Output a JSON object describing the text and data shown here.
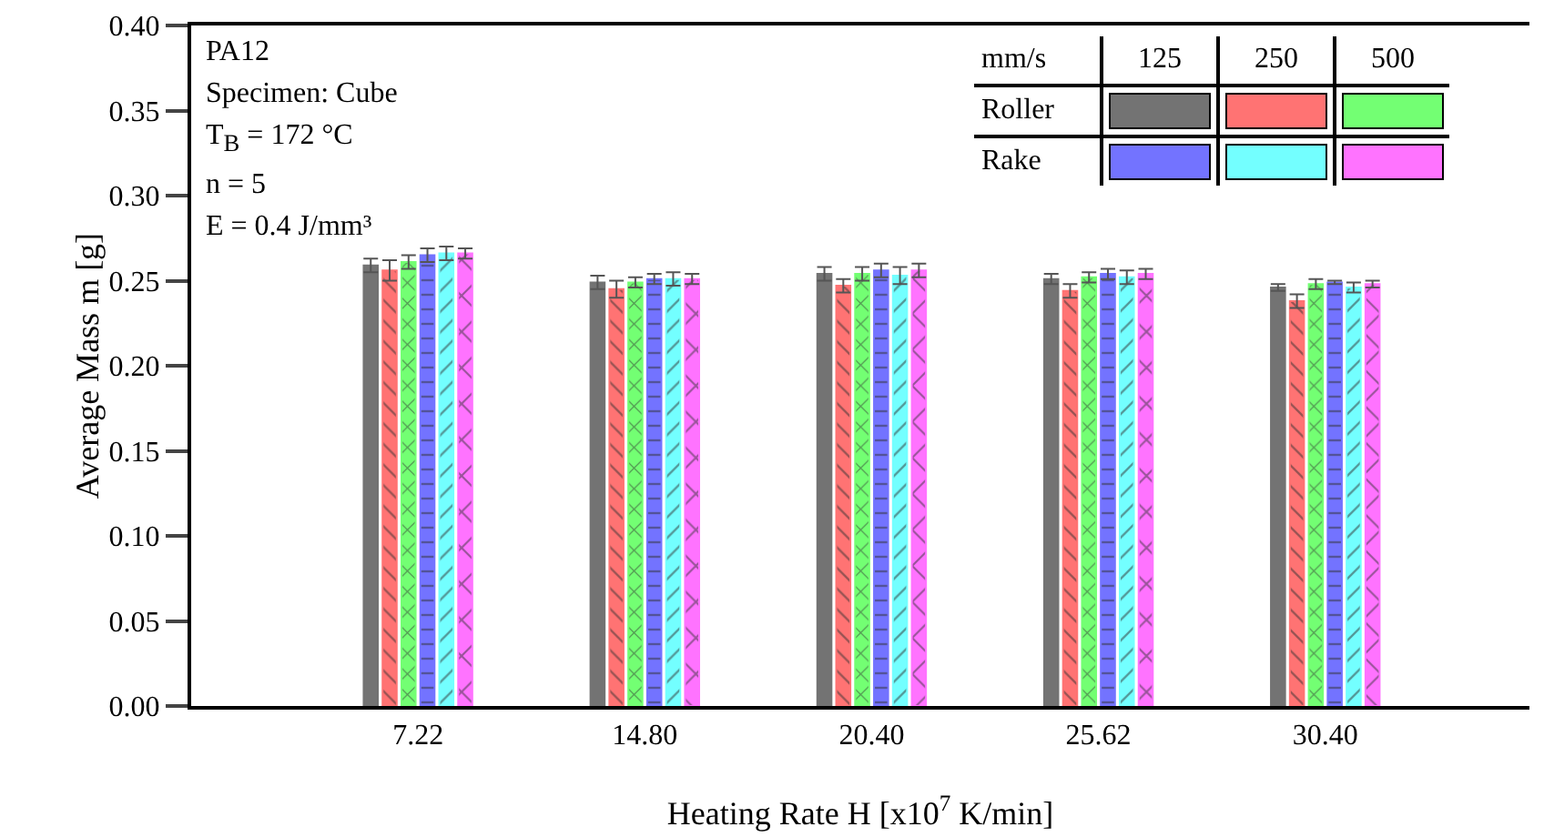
{
  "chart_data": {
    "type": "bar",
    "xlabel": "Heating Rate H [x10$^{7}$ K/min]",
    "ylabel": "Average Mass m [g]",
    "legend_title": "mm/s",
    "categories": [
      "7.22",
      "14.80",
      "20.40",
      "25.62",
      "30.40"
    ],
    "series": [
      {
        "color": "#737373",
        "values": [
          0.259,
          0.249,
          0.254,
          0.251,
          0.246
        ],
        "errors": [
          0.004,
          0.004,
          0.004,
          0.003,
          0.002
        ]
      },
      {
        "color": "#ff7373",
        "values": [
          0.256,
          0.245,
          0.247,
          0.244,
          0.238
        ],
        "errors": [
          0.006,
          0.005,
          0.004,
          0.004,
          0.004
        ]
      },
      {
        "color": "#73ff73",
        "values": [
          0.261,
          0.249,
          0.254,
          0.252,
          0.248
        ],
        "errors": [
          0.004,
          0.003,
          0.004,
          0.003,
          0.003
        ]
      },
      {
        "color": "#7373ff",
        "values": [
          0.265,
          0.251,
          0.256,
          0.254,
          0.249
        ],
        "errors": [
          0.004,
          0.003,
          0.004,
          0.003,
          0.001
        ]
      },
      {
        "color": "#73ffff",
        "values": [
          0.266,
          0.251,
          0.253,
          0.252,
          0.246
        ],
        "errors": [
          0.004,
          0.004,
          0.005,
          0.004,
          0.003
        ]
      },
      {
        "color": "#ff73ff",
        "values": [
          0.266,
          0.251,
          0.256,
          0.254,
          0.248
        ],
        "errors": [
          0.003,
          0.003,
          0.004,
          0.003,
          0.002
        ]
      }
    ],
    "ylim": [
      0,
      0.4
    ],
    "yticks": [
      {
        "value": 0,
        "label": "0.00"
      },
      0.05,
      {
        "value": 0.1,
        "label": "0.10"
      },
      0.15,
      {
        "value": 0.2,
        "label": "0.20"
      },
      0.25,
      {
        "value": 0.3,
        "label": "0.30"
      },
      0.35,
      {
        "value": 0.4,
        "label": "0.40"
      }
    ],
    "grid": false,
    "annotations": [
      "PA12",
      "Specimen: Cube",
      "T$_{B}$ = 172 °C",
      "n = 5",
      "E = 0.4 J/mm³",
      "125",
      "250",
      "500",
      "Roller",
      "Rake"
    ]
  }
}
